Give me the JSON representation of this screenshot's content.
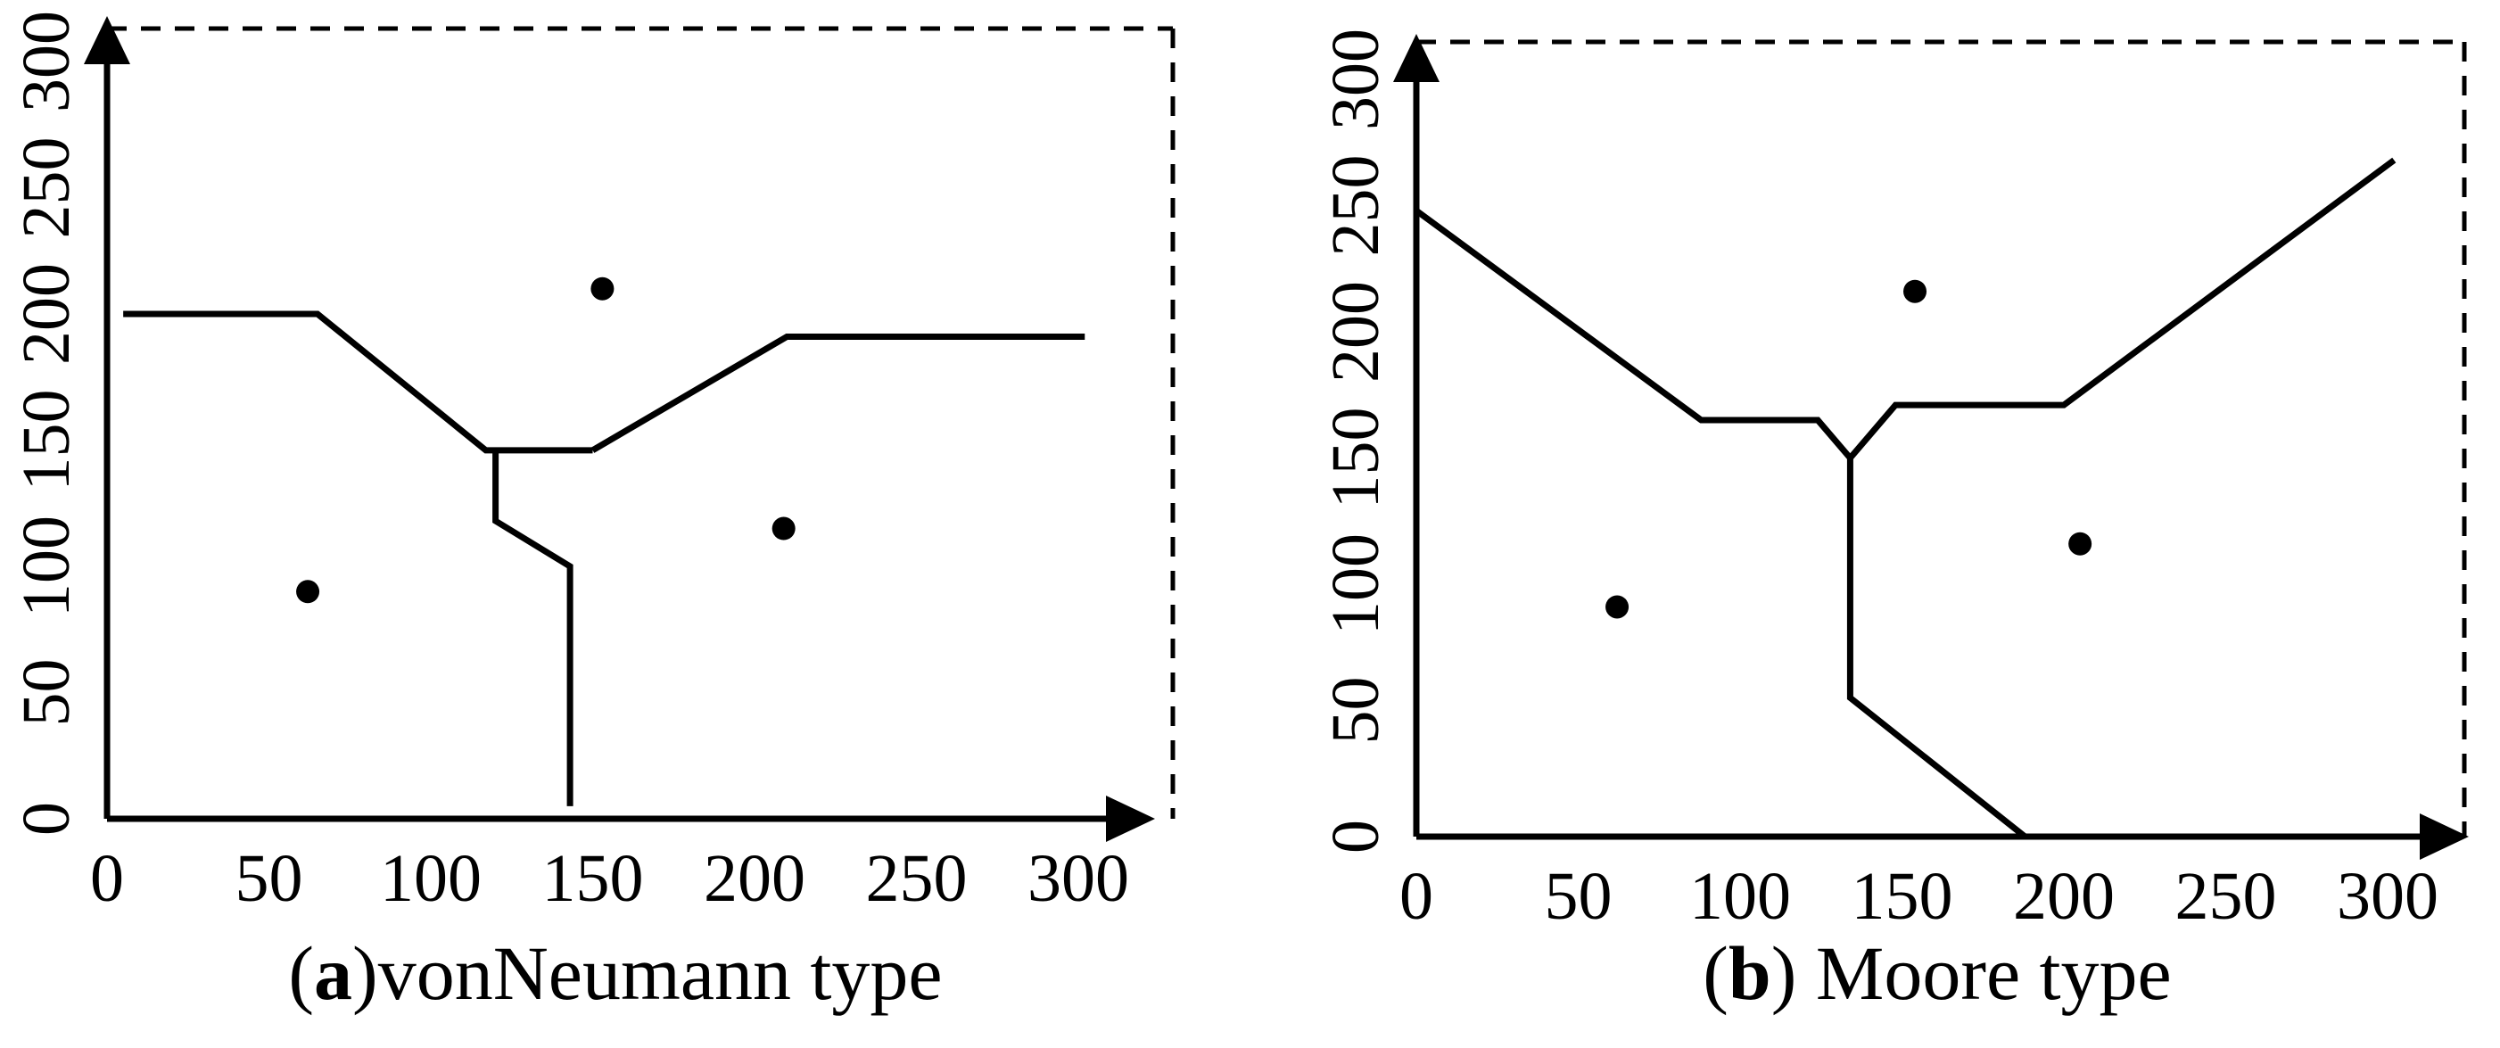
{
  "panels": [
    {
      "id": "a",
      "caption_label": "a",
      "caption_text": "vonNeumann type",
      "x_ticks": [
        "0",
        "50",
        "100",
        "150",
        "200",
        "250",
        "300"
      ],
      "y_ticks": [
        "0",
        "50",
        "100",
        "150",
        "200",
        "250",
        "300"
      ],
      "x_range": [
        0,
        300
      ],
      "y_range": [
        0,
        300
      ],
      "sites": [
        [
          62,
          90
        ],
        [
          153,
          210
        ],
        [
          209,
          115
        ]
      ],
      "boundaries": [
        [
          [
            5,
            200
          ],
          [
            65,
            200
          ],
          [
            117,
            146
          ],
          [
            150,
            146
          ]
        ],
        [
          [
            120,
            146
          ],
          [
            120,
            118
          ],
          [
            143,
            100
          ],
          [
            143,
            5
          ]
        ],
        [
          [
            150,
            146
          ],
          [
            210,
            191
          ],
          [
            302,
            191
          ]
        ]
      ]
    },
    {
      "id": "b",
      "caption_label": "b",
      "caption_text": " Moore type",
      "x_ticks": [
        "0",
        "50",
        "100",
        "150",
        "200",
        "250",
        "300"
      ],
      "y_ticks": [
        "0",
        "50",
        "100",
        "150",
        "200",
        "250",
        "300"
      ],
      "x_range": [
        0,
        300
      ],
      "y_range": [
        0,
        300
      ],
      "sites": [
        [
          62,
          91
        ],
        [
          154,
          216
        ],
        [
          205,
          116
        ]
      ],
      "boundaries": [
        [
          [
            0,
            248
          ],
          [
            88,
            165
          ],
          [
            124,
            165
          ],
          [
            134,
            150
          ]
        ],
        [
          [
            134,
            150
          ],
          [
            148,
            171
          ],
          [
            200,
            171
          ],
          [
            302,
            268
          ]
        ],
        [
          [
            134,
            150
          ],
          [
            134,
            55
          ],
          [
            188,
            0
          ]
        ]
      ]
    }
  ]
}
